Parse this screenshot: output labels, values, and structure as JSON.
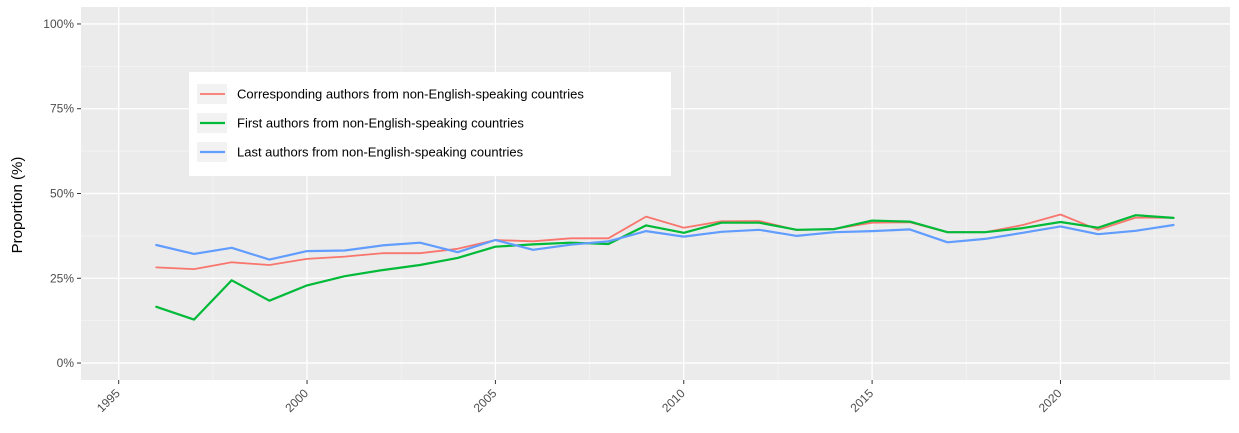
{
  "chart_data": {
    "type": "line",
    "title": "",
    "xlabel": "",
    "ylabel": "Proportion (%)",
    "xlim": [
      1995,
      2023
    ],
    "ylim": [
      0,
      100
    ],
    "x_ticks": [
      {
        "value": 1995,
        "label": "1995"
      },
      {
        "value": 2000,
        "label": "2000"
      },
      {
        "value": 2005,
        "label": "2005"
      },
      {
        "value": 2010,
        "label": "2010"
      },
      {
        "value": 2015,
        "label": "2015"
      },
      {
        "value": 2020,
        "label": "2020"
      }
    ],
    "y_ticks": [
      {
        "value": 0,
        "label": "0%"
      },
      {
        "value": 25,
        "label": "25%"
      },
      {
        "value": 50,
        "label": "50%"
      },
      {
        "value": 75,
        "label": "75%"
      },
      {
        "value": 100,
        "label": "100%"
      }
    ],
    "grid": true,
    "legend_position": "top-left",
    "x": [
      1996,
      1997,
      1998,
      1999,
      2000,
      2001,
      2002,
      2003,
      2004,
      2005,
      2006,
      2007,
      2008,
      2009,
      2010,
      2011,
      2012,
      2013,
      2014,
      2015,
      2016,
      2017,
      2018,
      2019,
      2020,
      2021,
      2022,
      2023
    ],
    "series": [
      {
        "name": "Corresponding authors from non-English-speaking countries",
        "color": "#F8766D",
        "values": [
          28.2,
          27.7,
          29.7,
          28.9,
          30.7,
          31.4,
          32.4,
          32.4,
          33.7,
          36.3,
          35.9,
          36.8,
          36.8,
          43.2,
          39.9,
          41.8,
          41.9,
          39.2,
          39.6,
          41.4,
          41.5,
          38.6,
          38.6,
          40.7,
          43.8,
          39.3,
          42.9,
          42.8
        ]
      },
      {
        "name": "First authors from non-English-speaking countries",
        "color": "#00BA38",
        "values": [
          16.6,
          12.8,
          24.4,
          18.4,
          22.9,
          25.6,
          27.4,
          28.9,
          31.0,
          34.3,
          35.0,
          35.5,
          35.1,
          40.6,
          38.4,
          41.4,
          41.4,
          39.3,
          39.5,
          42.0,
          41.7,
          38.6,
          38.6,
          39.8,
          41.6,
          39.9,
          43.6,
          42.8
        ]
      },
      {
        "name": "Last authors from non-English-speaking countries",
        "color": "#619CFF",
        "values": [
          34.8,
          32.2,
          34.0,
          30.5,
          33.0,
          33.2,
          34.7,
          35.5,
          32.7,
          36.3,
          33.4,
          34.9,
          35.9,
          38.9,
          37.3,
          38.7,
          39.3,
          37.5,
          38.6,
          38.9,
          39.4,
          35.6,
          36.6,
          38.4,
          40.3,
          38.0,
          39.0,
          40.7
        ]
      }
    ]
  }
}
